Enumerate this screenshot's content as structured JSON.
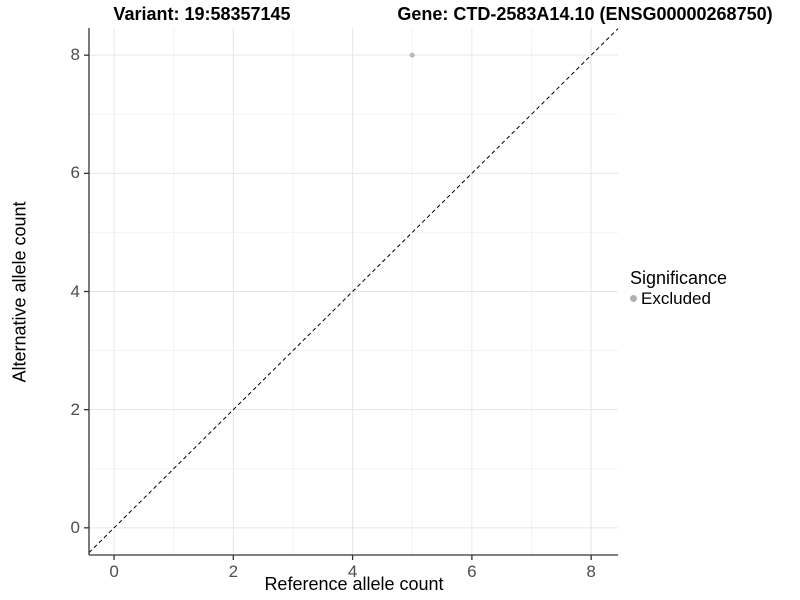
{
  "header": {
    "variant_title": "Variant: 19:58357145",
    "gene_title": "Gene: CTD-2583A14.10 (ENSG00000268750)"
  },
  "axes": {
    "x_label": "Reference allele count",
    "y_label": "Alternative allele count"
  },
  "legend": {
    "title": "Significance",
    "items": [
      {
        "label": "Excluded",
        "color": "#b0b0b0"
      }
    ]
  },
  "colors": {
    "grid_major": "#e6e6e6",
    "grid_minor": "#f3f3f3",
    "axis_line": "#333333",
    "tick_mark": "#333333",
    "tick_label": "#4d4d4d",
    "identity_line": "#000000",
    "point": "#bababa",
    "background": "#ffffff"
  },
  "chart_data": {
    "type": "scatter",
    "title_left": "Variant: 19:58357145",
    "title_right": "Gene: CTD-2583A14.10 (ENSG00000268750)",
    "xlabel": "Reference allele count",
    "ylabel": "Alternative allele count",
    "xlim": [
      -0.42,
      8.45
    ],
    "ylim": [
      -0.46,
      8.46
    ],
    "x_major_ticks": [
      0,
      2,
      4,
      6,
      8
    ],
    "y_major_ticks": [
      0,
      2,
      4,
      6,
      8
    ],
    "x_minor_ticks": [
      1,
      3,
      5,
      7
    ],
    "y_minor_ticks": [
      1,
      3,
      5,
      7
    ],
    "grid": true,
    "legend_position": "right",
    "series": [
      {
        "name": "Excluded",
        "color": "#bababa",
        "points": [
          {
            "x": 5,
            "y": 8
          }
        ]
      }
    ],
    "reference_line": {
      "type": "identity",
      "style": "dashed",
      "from": [
        -0.42,
        -0.42
      ],
      "to": [
        8.45,
        8.45
      ]
    }
  }
}
